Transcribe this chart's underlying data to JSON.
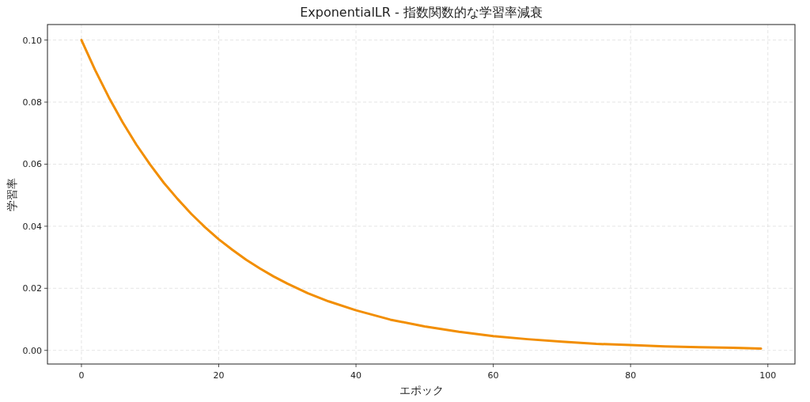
{
  "chart_data": {
    "type": "line",
    "title": "ExponentialLR - 指数関数的な学習率減衰",
    "xlabel": "エポック",
    "ylabel": "学習率",
    "x": [
      0,
      2,
      4,
      6,
      8,
      10,
      12,
      14,
      16,
      18,
      20,
      22,
      24,
      26,
      28,
      30,
      33,
      36,
      40,
      45,
      50,
      55,
      60,
      65,
      70,
      75,
      80,
      85,
      90,
      95,
      99
    ],
    "series": [
      {
        "color": "#f28e00",
        "values": [
          0.1,
          0.0903,
          0.0815,
          0.0735,
          0.0663,
          0.0599,
          0.054,
          0.0488,
          0.044,
          0.0397,
          0.0358,
          0.0324,
          0.0292,
          0.0264,
          0.0238,
          0.0215,
          0.0184,
          0.0158,
          0.0129,
          0.0099,
          0.0077,
          0.006,
          0.0046,
          0.0036,
          0.0028,
          0.0021,
          0.0017,
          0.0013,
          0.001,
          0.0008,
          0.0006
        ]
      }
    ],
    "xlim": [
      -4.95,
      103.95
    ],
    "ylim": [
      -0.0044,
      0.105
    ],
    "xticks": [
      0,
      20,
      40,
      60,
      80,
      100
    ],
    "yticks": [
      {
        "value": 0,
        "label": "0.00"
      },
      {
        "value": 0.02,
        "label": "0.02"
      },
      {
        "value": 0.04,
        "label": "0.04"
      },
      {
        "value": 0.06,
        "label": "0.06"
      },
      {
        "value": 0.08,
        "label": "0.08"
      },
      {
        "value": 0.1,
        "label": "0.10"
      }
    ],
    "grid": true,
    "line_style": "solid",
    "marker": "none"
  }
}
